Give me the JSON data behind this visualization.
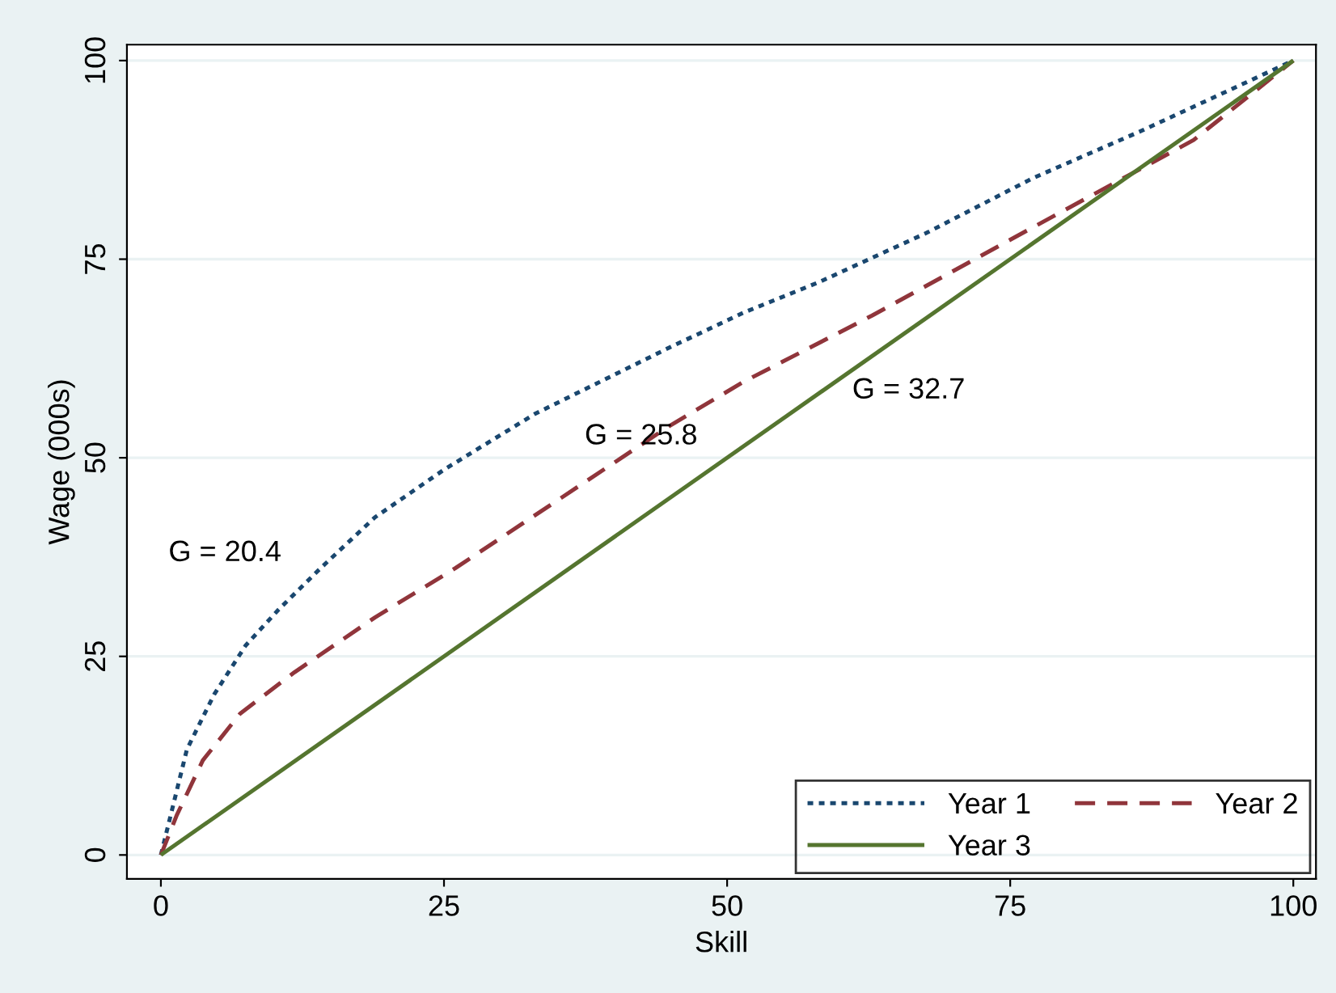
{
  "chart_data": {
    "type": "line",
    "xlabel": "Skill",
    "ylabel": "Wage (000s)",
    "xlim": [
      -3,
      102
    ],
    "ylim": [
      -3,
      102
    ],
    "xticks": [
      0,
      25,
      50,
      75,
      100
    ],
    "yticks": [
      0,
      25,
      50,
      75,
      100
    ],
    "grid": "y",
    "legend": "bottom right",
    "annotations": [
      "G = 20.4",
      "G = 25.8",
      "G = 32.7"
    ],
    "series": [
      {
        "name": "Year 1",
        "color": "#1a476f",
        "line_style": "dotted",
        "x": [
          0,
          2.3,
          4.7,
          7.5,
          10.4,
          14.1,
          18.9,
          25,
          33,
          44.8,
          51.5,
          58.1,
          67.6,
          77,
          86.5,
          100
        ],
        "values": [
          0,
          13.3,
          20.2,
          26.4,
          30.9,
          36.1,
          42.5,
          48.5,
          55.5,
          63.8,
          68.3,
          72.1,
          78.3,
          85.2,
          91.1,
          100
        ]
      },
      {
        "name": "Year 2",
        "color": "#90353b",
        "line_style": "dashed",
        "x": [
          0,
          1.4,
          3.7,
          7,
          11.8,
          18.9,
          26,
          35.4,
          44.9,
          51.5,
          62.8,
          77,
          91.2,
          100
        ],
        "values": [
          0,
          5,
          11.9,
          17.8,
          23,
          29.9,
          36.1,
          45,
          54,
          59.6,
          67.9,
          79,
          90,
          100
        ]
      },
      {
        "name": "Year 3",
        "color": "#55752f",
        "line_style": "solid",
        "x": [
          0,
          100
        ],
        "values": [
          0,
          100
        ]
      }
    ]
  }
}
